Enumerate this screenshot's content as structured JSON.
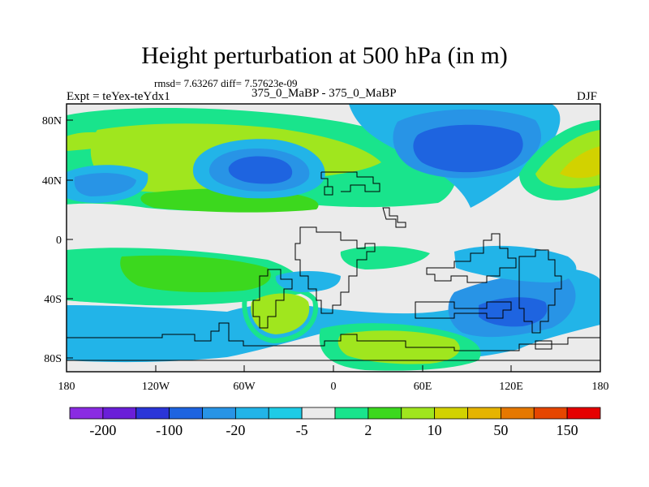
{
  "title": "Height perturbation at 500 hPa (in m)",
  "stats": "rmsd= 7.63267 diff= 7.57623e-09",
  "left_label": "Expt = teYex-teYdx1",
  "center_label": "375_0_MaBP - 375_0_MaBP",
  "right_label": "DJF",
  "lon_ticks": [
    "180",
    "120W",
    "60W",
    "0",
    "60E",
    "120E",
    "180"
  ],
  "lat_ticks": [
    "80N",
    "40N",
    "0",
    "40S",
    "80S"
  ],
  "colorbar": {
    "colors": [
      "#8a2be2",
      "#6a1fd8",
      "#2a35d8",
      "#1e64e0",
      "#2894e6",
      "#22b4e8",
      "#1ecbe6",
      "#ebebeb",
      "#19e48c",
      "#3cd81e",
      "#a0e61e",
      "#d2d200",
      "#e6b400",
      "#e67800",
      "#e64600",
      "#e60000"
    ],
    "labels": [
      "-200",
      "-100",
      "-20",
      "-5",
      "2",
      "10",
      "50",
      "150"
    ]
  }
}
